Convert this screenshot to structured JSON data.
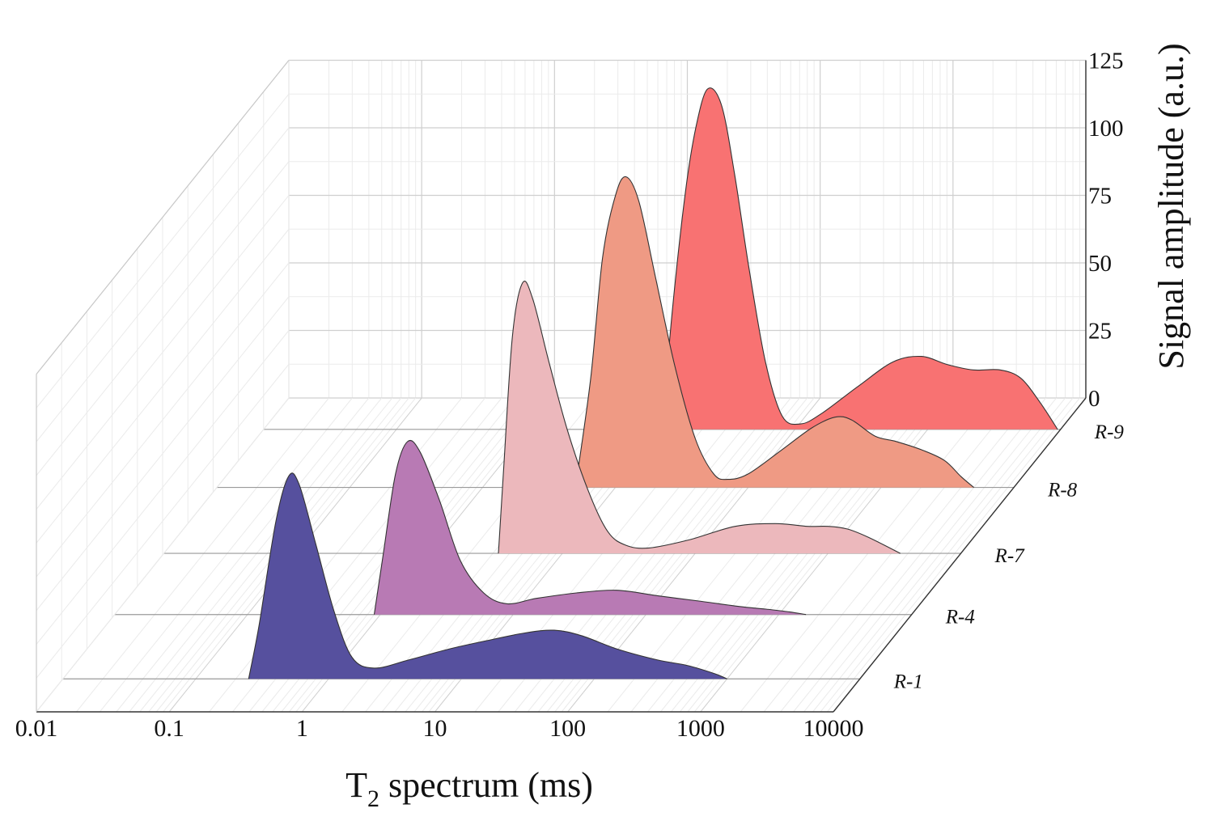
{
  "chart_data": {
    "type": "area",
    "subtype": "3d-waterfall",
    "title": "",
    "xlabel": "T",
    "xlabel_sub": "2",
    "xlabel_rest": " spectrum (ms)",
    "ylabel": "Signal amplitude (a.u.)",
    "xscale": "log",
    "xlim": [
      0.01,
      10000
    ],
    "x_ticks": [
      "0.01",
      "0.1",
      "1",
      "10",
      "100",
      "1000",
      "10000"
    ],
    "ylim": [
      0,
      125
    ],
    "y_ticks": [
      "0",
      "25",
      "50",
      "75",
      "100",
      "125"
    ],
    "grid": true,
    "series": [
      {
        "name": "R-1",
        "color": "#56509e",
        "points": [
          [
            0.25,
            0
          ],
          [
            0.3,
            20
          ],
          [
            0.4,
            58
          ],
          [
            0.5,
            75
          ],
          [
            0.6,
            72
          ],
          [
            0.8,
            50
          ],
          [
            1.1,
            25
          ],
          [
            1.5,
            8
          ],
          [
            2.2,
            4
          ],
          [
            4,
            7
          ],
          [
            8,
            11
          ],
          [
            15,
            14
          ],
          [
            30,
            17
          ],
          [
            50,
            18
          ],
          [
            80,
            16
          ],
          [
            150,
            11
          ],
          [
            300,
            7
          ],
          [
            500,
            5
          ],
          [
            800,
            2
          ],
          [
            1000,
            0
          ]
        ]
      },
      {
        "name": "R-4",
        "color": "#b87ab4",
        "points": [
          [
            0.9,
            0
          ],
          [
            1.05,
            22
          ],
          [
            1.3,
            52
          ],
          [
            1.6,
            64
          ],
          [
            2,
            60
          ],
          [
            2.8,
            42
          ],
          [
            4,
            20
          ],
          [
            6,
            8
          ],
          [
            9,
            4
          ],
          [
            15,
            6
          ],
          [
            30,
            8
          ],
          [
            60,
            9
          ],
          [
            120,
            7
          ],
          [
            250,
            5
          ],
          [
            500,
            3
          ],
          [
            800,
            2
          ],
          [
            1200,
            1
          ],
          [
            1600,
            0
          ]
        ]
      },
      {
        "name": "R-7",
        "color": "#ecb8bc",
        "points": [
          [
            3.3,
            0
          ],
          [
            3.6,
            30
          ],
          [
            4.2,
            80
          ],
          [
            5,
            100
          ],
          [
            6,
            94
          ],
          [
            8,
            70
          ],
          [
            11,
            45
          ],
          [
            16,
            22
          ],
          [
            22,
            8
          ],
          [
            30,
            3
          ],
          [
            45,
            2
          ],
          [
            90,
            5
          ],
          [
            200,
            10
          ],
          [
            400,
            11
          ],
          [
            700,
            10
          ],
          [
            1000,
            10
          ],
          [
            1400,
            9
          ],
          [
            2000,
            6
          ],
          [
            3500,
            0
          ]
        ]
      },
      {
        "name": "R-8",
        "color": "#ef9a84",
        "points": [
          [
            5,
            0
          ],
          [
            6.5,
            40
          ],
          [
            8,
            85
          ],
          [
            10,
            108
          ],
          [
            12,
            115
          ],
          [
            15,
            106
          ],
          [
            20,
            78
          ],
          [
            28,
            45
          ],
          [
            40,
            18
          ],
          [
            55,
            5
          ],
          [
            70,
            3
          ],
          [
            100,
            5
          ],
          [
            180,
            14
          ],
          [
            300,
            22
          ],
          [
            450,
            26
          ],
          [
            600,
            25
          ],
          [
            900,
            19
          ],
          [
            1300,
            17
          ],
          [
            2000,
            14
          ],
          [
            3000,
            10
          ],
          [
            4000,
            4
          ],
          [
            5000,
            0
          ]
        ]
      },
      {
        "name": "R-9",
        "color": "#f87272",
        "points": [
          [
            10,
            0
          ],
          [
            12,
            45
          ],
          [
            15,
            88
          ],
          [
            18,
            112
          ],
          [
            22,
            126
          ],
          [
            28,
            120
          ],
          [
            35,
            95
          ],
          [
            45,
            60
          ],
          [
            60,
            25
          ],
          [
            80,
            5
          ],
          [
            110,
            2
          ],
          [
            160,
            6
          ],
          [
            300,
            16
          ],
          [
            550,
            25
          ],
          [
            900,
            27
          ],
          [
            1400,
            24
          ],
          [
            2200,
            22
          ],
          [
            3500,
            22
          ],
          [
            5000,
            19
          ],
          [
            7000,
            10
          ],
          [
            9500,
            0
          ]
        ]
      }
    ]
  }
}
